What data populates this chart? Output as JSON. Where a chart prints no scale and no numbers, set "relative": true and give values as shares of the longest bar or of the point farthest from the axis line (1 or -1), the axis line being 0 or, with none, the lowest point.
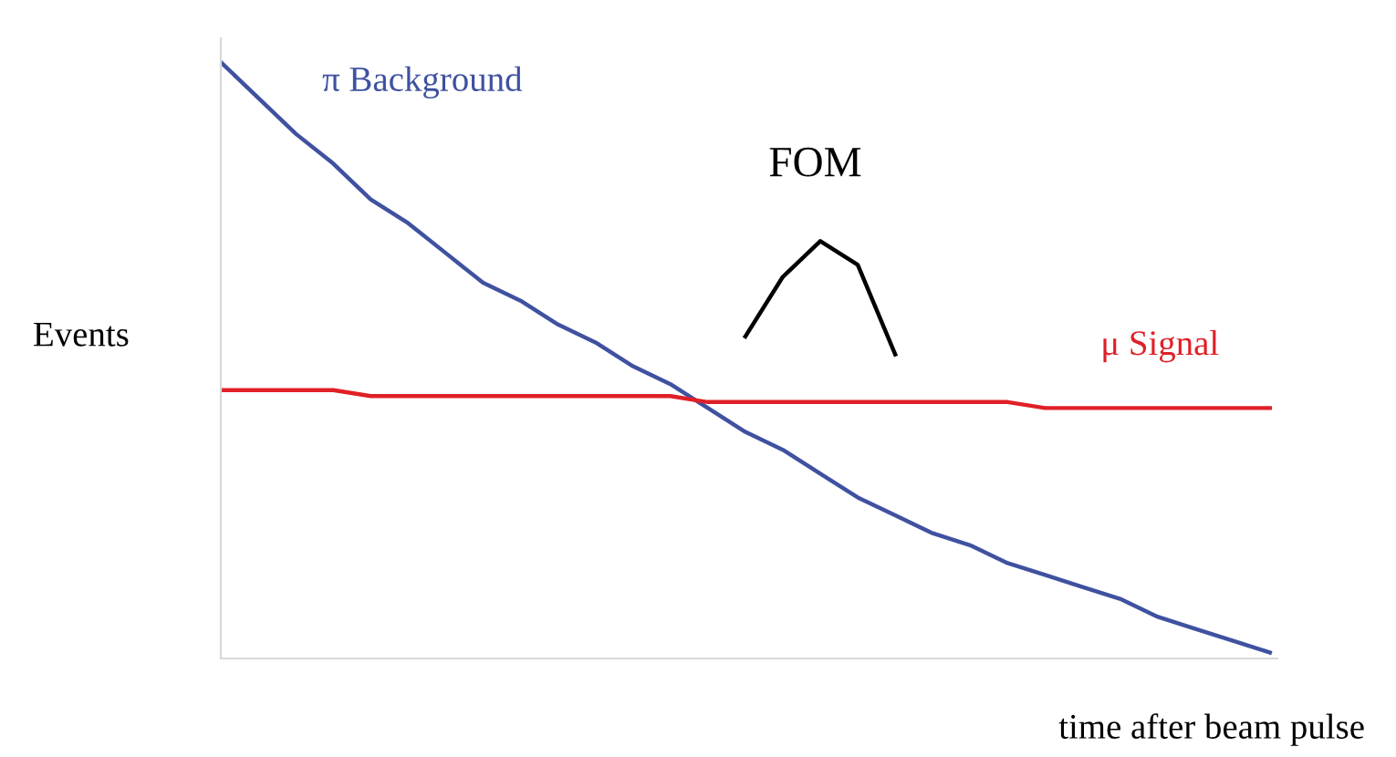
{
  "chart_data": {
    "type": "line",
    "relative": true,
    "ylabel": "Events",
    "xlabel": "time after beam pulse",
    "categories": [
      null,
      null,
      null,
      null,
      null,
      null,
      null,
      null,
      null,
      null,
      null,
      null,
      null,
      null,
      null,
      null,
      null,
      null,
      null,
      null,
      null,
      null,
      null,
      null,
      null,
      null,
      null,
      null,
      null
    ],
    "series": [
      {
        "name": "π Background",
        "color": "#3f51a0",
        "values": [
          1,
          0.94,
          0.88,
          0.83,
          0.77,
          0.73,
          0.68,
          0.63,
          0.6,
          0.56,
          0.53,
          0.49,
          0.46,
          0.42,
          0.38,
          0.35,
          0.31,
          0.27,
          0.24,
          0.21,
          0.19,
          0.16,
          0.14,
          0.12,
          0.1,
          0.07,
          0.05,
          0.03,
          0.01
        ]
      },
      {
        "name": "μ Signal",
        "color": "#e02027",
        "values": [
          0.45,
          0.45,
          0.45,
          0.45,
          0.44,
          0.44,
          0.44,
          0.44,
          0.44,
          0.44,
          0.44,
          0.44,
          0.44,
          0.43,
          0.43,
          0.43,
          0.43,
          0.43,
          0.43,
          0.43,
          0.43,
          0.43,
          0.42,
          0.42,
          0.42,
          0.42,
          0.42,
          0.42,
          0.42
        ]
      },
      {
        "name": "FOM",
        "color": "#000000",
        "values": [
          null,
          null,
          null,
          null,
          null,
          null,
          null,
          null,
          null,
          null,
          null,
          null,
          null,
          null,
          0.54,
          0.64,
          0.7,
          0.66,
          0.51,
          null,
          null,
          null,
          null,
          null,
          null,
          null,
          null,
          null,
          null
        ]
      }
    ],
    "grid": false,
    "legend": false,
    "marker": "none",
    "line_style": "solid"
  }
}
